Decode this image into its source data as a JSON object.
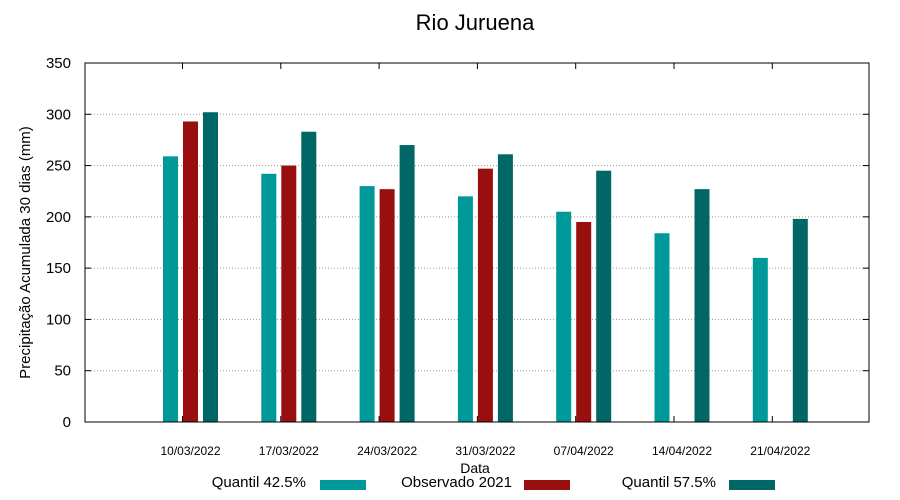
{
  "chart_data": {
    "type": "bar",
    "title": "Rio Juruena",
    "xlabel": "Data",
    "ylabel": "Precipitação Acumulada 30 dias (mm)",
    "ylim": [
      0,
      350
    ],
    "yticks": [
      0,
      50,
      100,
      150,
      200,
      250,
      300,
      350
    ],
    "grid": true,
    "legend_position": "bottom",
    "categories": [
      "10/03/2022",
      "17/03/2022",
      "24/03/2022",
      "31/03/2022",
      "07/04/2022",
      "14/04/2022",
      "21/04/2022"
    ],
    "series": [
      {
        "name": "Quantil 42.5%",
        "color": "#009999",
        "values": [
          259,
          242,
          230,
          220,
          205,
          184,
          160
        ]
      },
      {
        "name": "Observado 2021",
        "color": "#990f0f",
        "values": [
          293,
          250,
          227,
          247,
          195,
          null,
          null
        ]
      },
      {
        "name": "Quantil 57.5%",
        "color": "#006666",
        "values": [
          302,
          283,
          270,
          261,
          245,
          227,
          198
        ]
      }
    ]
  }
}
